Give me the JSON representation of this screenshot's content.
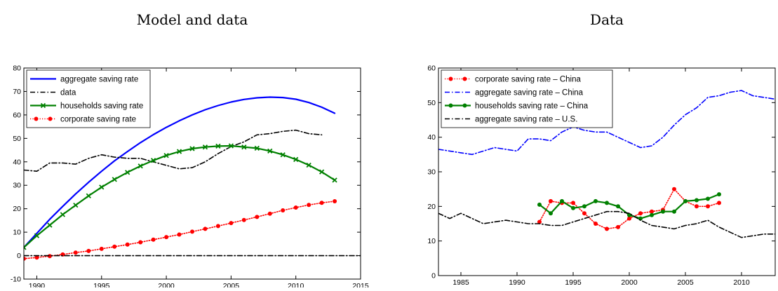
{
  "chart_data": [
    {
      "type": "line",
      "title": "Model and data",
      "xlabel": "",
      "ylabel": "",
      "xlim": [
        1989,
        2015
      ],
      "ylim": [
        -10,
        80
      ],
      "xticks": [
        1990,
        1995,
        2000,
        2005,
        2010,
        2015
      ],
      "yticks": [
        -10,
        0,
        10,
        20,
        30,
        40,
        50,
        60,
        70,
        80
      ],
      "legend_position": "top-left",
      "series": [
        {
          "name": "aggregate saving rate",
          "color": "#0000ff",
          "style": "solid",
          "marker": "none",
          "x": [
            1989,
            1990,
            1991,
            1992,
            1993,
            1994,
            1995,
            1996,
            1997,
            1998,
            1999,
            2000,
            2001,
            2002,
            2003,
            2004,
            2005,
            2006,
            2007,
            2008,
            2009,
            2010,
            2011,
            2012,
            2013
          ],
          "y": [
            3.5,
            9.5,
            15.5,
            21.0,
            26.3,
            31.3,
            36.0,
            40.4,
            44.4,
            48.2,
            51.6,
            54.7,
            57.5,
            60.0,
            62.2,
            64.0,
            65.5,
            66.6,
            67.3,
            67.6,
            67.4,
            66.7,
            65.3,
            63.3,
            60.7
          ]
        },
        {
          "name": "data",
          "color": "#000000",
          "style": "dashdot",
          "marker": "none",
          "x": [
            1989,
            1990,
            1991,
            1992,
            1993,
            1994,
            1995,
            1996,
            1997,
            1998,
            1999,
            2000,
            2001,
            2002,
            2003,
            2004,
            2005,
            2006,
            2007,
            2008,
            2009,
            2010,
            2011,
            2012
          ],
          "y": [
            36.5,
            36.0,
            39.5,
            39.5,
            39.0,
            41.5,
            43.0,
            42.0,
            41.5,
            41.5,
            40.0,
            38.5,
            37.0,
            37.5,
            40.0,
            43.5,
            46.5,
            48.5,
            51.5,
            52.0,
            53.0,
            53.5,
            52.0,
            51.5
          ]
        },
        {
          "name": "households saving rate",
          "color": "#008000",
          "style": "solid",
          "marker": "x",
          "x": [
            1989,
            1990,
            1991,
            1992,
            1993,
            1994,
            1995,
            1996,
            1997,
            1998,
            1999,
            2000,
            2001,
            2002,
            2003,
            2004,
            2005,
            2006,
            2007,
            2008,
            2009,
            2010,
            2011,
            2012,
            2013
          ],
          "y": [
            3.5,
            8.5,
            13.0,
            17.5,
            21.5,
            25.5,
            29.2,
            32.5,
            35.5,
            38.2,
            40.6,
            42.7,
            44.4,
            45.6,
            46.3,
            46.7,
            46.8,
            46.3,
            45.8,
            44.6,
            43.0,
            41.0,
            38.6,
            35.7,
            32.2
          ]
        },
        {
          "name": "corporate saving rate",
          "color": "#ff0000",
          "style": "dotted",
          "marker": "dot",
          "x": [
            1989,
            1990,
            1991,
            1992,
            1993,
            1994,
            1995,
            1996,
            1997,
            1998,
            1999,
            2000,
            2001,
            2002,
            2003,
            2004,
            2005,
            2006,
            2007,
            2008,
            2009,
            2010,
            2011,
            2012,
            2013
          ],
          "y": [
            -1.3,
            -0.8,
            -0.2,
            0.5,
            1.3,
            2.0,
            2.9,
            3.8,
            4.7,
            5.7,
            6.8,
            7.9,
            9.0,
            10.2,
            11.4,
            12.6,
            13.9,
            15.2,
            16.5,
            17.9,
            19.3,
            20.5,
            21.6,
            22.5,
            23.2
          ]
        },
        {
          "name": "",
          "color": "#000000",
          "style": "dashdot",
          "marker": "none",
          "x": [
            1989,
            2015
          ],
          "y": [
            0,
            0
          ]
        }
      ]
    },
    {
      "type": "line",
      "title": "Data",
      "xlabel": "",
      "ylabel": "",
      "xlim": [
        1983,
        2013
      ],
      "ylim": [
        0,
        60
      ],
      "xticks": [
        1985,
        1990,
        1995,
        2000,
        2005,
        2010
      ],
      "yticks": [
        0,
        10,
        20,
        30,
        40,
        50,
        60
      ],
      "legend_position": "top-left",
      "series": [
        {
          "name": "corporate saving rate – China",
          "color": "#ff0000",
          "style": "dotted",
          "marker": "dot",
          "x": [
            1992,
            1993,
            1994,
            1995,
            1996,
            1997,
            1998,
            1999,
            2000,
            2001,
            2002,
            2003,
            2004,
            2005,
            2006,
            2007,
            2008
          ],
          "y": [
            15.5,
            21.5,
            21.0,
            21.0,
            18.0,
            15.0,
            13.5,
            14.0,
            16.5,
            18.0,
            18.5,
            19.0,
            25.0,
            21.5,
            20.0,
            20.0,
            21.0
          ]
        },
        {
          "name": "aggregate saving rate – China",
          "color": "#0000ff",
          "style": "dashdot",
          "marker": "none",
          "x": [
            1983,
            1984,
            1985,
            1986,
            1987,
            1988,
            1989,
            1990,
            1991,
            1992,
            1993,
            1994,
            1995,
            1996,
            1997,
            1998,
            1999,
            2000,
            2001,
            2002,
            2003,
            2004,
            2005,
            2006,
            2007,
            2008,
            2009,
            2010,
            2011,
            2012,
            2013
          ],
          "y": [
            36.5,
            36.0,
            35.5,
            35.0,
            36.0,
            37.0,
            36.5,
            36.0,
            39.5,
            39.5,
            39.0,
            41.5,
            43.0,
            42.0,
            41.5,
            41.5,
            40.0,
            38.5,
            37.0,
            37.5,
            40.0,
            43.5,
            46.5,
            48.5,
            51.5,
            52.0,
            53.0,
            53.5,
            52.0,
            51.5,
            51.0
          ]
        },
        {
          "name": "households saving rate – China",
          "color": "#008000",
          "style": "solid",
          "marker": "dot",
          "x": [
            1992,
            1993,
            1994,
            1995,
            1996,
            1997,
            1998,
            1999,
            2000,
            2001,
            2002,
            2003,
            2004,
            2005,
            2006,
            2007,
            2008
          ],
          "y": [
            20.5,
            18.0,
            21.5,
            19.5,
            20.0,
            21.5,
            21.0,
            20.0,
            17.5,
            16.5,
            17.5,
            18.5,
            18.5,
            21.5,
            21.8,
            22.2,
            23.5
          ]
        },
        {
          "name": "aggregate saving rate – U.S.",
          "color": "#000000",
          "style": "dashdot",
          "marker": "none",
          "x": [
            1983,
            1984,
            1985,
            1986,
            1987,
            1988,
            1989,
            1990,
            1991,
            1992,
            1993,
            1994,
            1995,
            1996,
            1997,
            1998,
            1999,
            2000,
            2001,
            2002,
            2003,
            2004,
            2005,
            2006,
            2007,
            2008,
            2009,
            2010,
            2011,
            2012,
            2013
          ],
          "y": [
            18.0,
            16.5,
            18.0,
            16.5,
            15.0,
            15.5,
            16.0,
            15.5,
            15.0,
            15.0,
            14.5,
            14.5,
            15.5,
            16.5,
            17.5,
            18.5,
            18.5,
            18.0,
            16.0,
            14.5,
            14.0,
            13.5,
            14.5,
            15.0,
            16.0,
            14.0,
            12.5,
            11.0,
            11.5,
            12.0,
            12.0
          ]
        }
      ]
    }
  ]
}
